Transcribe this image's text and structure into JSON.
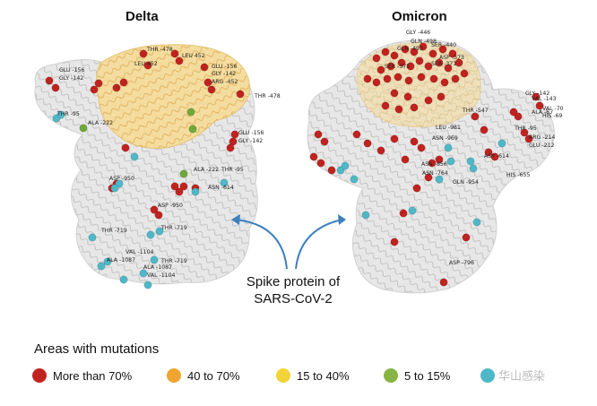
{
  "panels": {
    "delta": {
      "title": "Delta",
      "labels": [
        "GLU -156",
        "GLY -142",
        "THR -478",
        "LEU 452",
        "LEU 452",
        "GLU -156",
        "GLY -142",
        "ARG -452",
        "THR -478",
        "THR -95",
        "ALA -222",
        "GLU -156",
        "GLY -142",
        "ALA -222",
        "THR -95",
        "ASP -950",
        "ASN -614",
        "ASP -950",
        "THR -719",
        "THR -719",
        "VAL -1104",
        "ALA -1087",
        "THR -719",
        "ALA -1087",
        "VAL -1104"
      ]
    },
    "omicron": {
      "title": "Omicron",
      "labels": [
        "GLY -446",
        "GLN -498",
        "GLN -493",
        "SER -440",
        "ASP -373",
        "SER -371",
        "SER -375",
        "GLY -142",
        "VAL -143",
        "VAL -70",
        "ALA -67",
        "HIS -69",
        "THR -547",
        "THR -95",
        "LEU -981",
        "ASN -969",
        "ARG -214",
        "GLU -212",
        "ASP -614",
        "ASN -856",
        "ASN -764",
        "GLN -954",
        "HIS -655",
        "ASP -796"
      ]
    }
  },
  "center_label": {
    "line1": "Spike protein of",
    "line2": "SARS-CoV-2"
  },
  "legend": {
    "title": "Areas with mutations",
    "items": [
      {
        "label": "More than 70%",
        "color": "#c0231f"
      },
      {
        "label": "40 to 70%",
        "color": "#f0a531"
      },
      {
        "label": "15 to 40%",
        "color": "#f2d43a"
      },
      {
        "label": "5 to 15%",
        "color": "#86b544"
      },
      {
        "label": "",
        "color": "#4fb8c8"
      }
    ]
  },
  "watermark": "华山感染",
  "colors": {
    "protein": "#d9d9d9",
    "high": "#c0231f",
    "yellow_region": "#f5d58a",
    "green": "#6ea93b",
    "cyan": "#4fb8c8",
    "arrow": "#3d7fc0"
  }
}
